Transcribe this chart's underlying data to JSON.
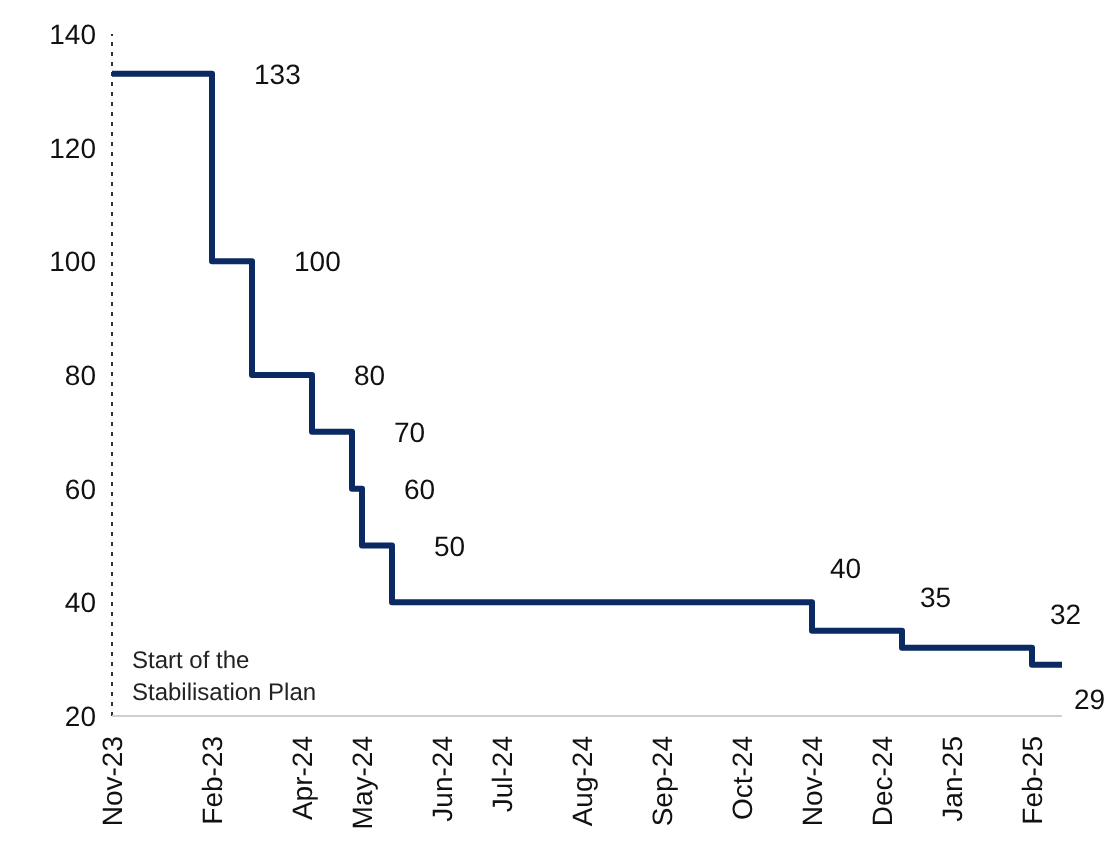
{
  "chart_data": {
    "type": "step",
    "categories": [
      "Nov-23",
      null,
      null,
      null,
      null,
      null,
      null,
      null,
      null,
      null,
      "Feb-23",
      null,
      null,
      null,
      null,
      null,
      null,
      null,
      null,
      "Apr-24",
      null,
      null,
      null,
      null,
      null,
      "May-24",
      null,
      null,
      null,
      null,
      null,
      null,
      null,
      "Jun-24",
      null,
      null,
      null,
      null,
      null,
      "Jul-24",
      null,
      null,
      null,
      null,
      null,
      null,
      null,
      "Aug-24",
      null,
      null,
      null,
      null,
      null,
      null,
      null,
      "Sep-24",
      null,
      null,
      null,
      null,
      null,
      null,
      null,
      "Oct-24",
      null,
      null,
      null,
      null,
      null,
      null,
      "Nov-24",
      null,
      null,
      null,
      null,
      null,
      null,
      "Dec-24",
      null,
      null,
      null,
      null,
      null,
      null,
      "Jan-25",
      null,
      null,
      null,
      null,
      null,
      null,
      null,
      "Feb-25",
      null,
      null,
      null
    ],
    "series": [
      {
        "color": "#0b2a63",
        "values": [
          133,
          133,
          133,
          133,
          133,
          133,
          133,
          133,
          133,
          133,
          100,
          100,
          100,
          100,
          80,
          80,
          80,
          80,
          80,
          80,
          70,
          70,
          70,
          70,
          60,
          50,
          50,
          50,
          40,
          40,
          40,
          40,
          40,
          40,
          40,
          40,
          40,
          40,
          40,
          40,
          40,
          40,
          40,
          40,
          40,
          40,
          40,
          40,
          40,
          40,
          40,
          40,
          40,
          40,
          40,
          40,
          40,
          40,
          40,
          40,
          40,
          40,
          40,
          40,
          40,
          40,
          40,
          40,
          40,
          40,
          35,
          35,
          35,
          35,
          35,
          35,
          35,
          35,
          35,
          32,
          32,
          32,
          32,
          32,
          32,
          32,
          32,
          32,
          32,
          32,
          32,
          32,
          29,
          29,
          29,
          29
        ],
        "value_labels": [
          null,
          null,
          null,
          null,
          null,
          null,
          null,
          null,
          null,
          "133",
          null,
          null,
          null,
          "100",
          null,
          null,
          null,
          null,
          null,
          "80",
          null,
          null,
          null,
          "70",
          "60",
          null,
          null,
          "50",
          null,
          null,
          null,
          null,
          null,
          null,
          null,
          null,
          null,
          null,
          null,
          null,
          null,
          null,
          null,
          null,
          null,
          null,
          null,
          null,
          null,
          null,
          null,
          null,
          null,
          null,
          null,
          null,
          null,
          null,
          null,
          null,
          null,
          null,
          null,
          null,
          null,
          null,
          null,
          null,
          null,
          "40",
          null,
          null,
          null,
          null,
          null,
          null,
          null,
          null,
          "35",
          null,
          null,
          null,
          null,
          null,
          null,
          null,
          null,
          null,
          null,
          null,
          null,
          "32",
          null,
          null,
          null,
          "29"
        ]
      }
    ],
    "ylim": [
      20,
      140
    ],
    "yticks": [
      20,
      40,
      60,
      80,
      100,
      120,
      140
    ],
    "grid": false,
    "legend": false,
    "marker": "none",
    "line_style": "solid",
    "ref_lines": [
      {
        "axis": "x",
        "value": "Nov-23",
        "label": "Start of the Stabilisation Plan",
        "line_style": "dotted",
        "color": "#333333"
      }
    ]
  }
}
